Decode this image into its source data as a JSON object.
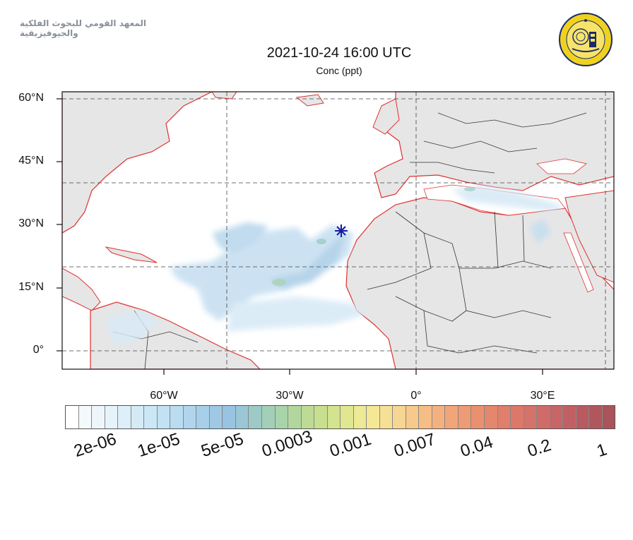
{
  "header": {
    "institute_name": "المعهد القومي للبحوث الفلكية والجيوفيزيقية",
    "title": "2021-10-24 16:00 UTC",
    "subtitle": "Conc (ppt)"
  },
  "map": {
    "region": "North Atlantic, North Africa, Mediterranean",
    "lat_labels": [
      "60°N",
      "45°N",
      "30°N",
      "15°N",
      "0°"
    ],
    "lon_labels": [
      "60°W",
      "30°W",
      "0°",
      "30°E"
    ],
    "source_marker": {
      "icon": "star-marker-icon",
      "color": "#1a1aa6"
    },
    "colors": {
      "land": "#e6e6e6",
      "ocean": "#ffffff",
      "coastline": "#e03030",
      "borders": "#333333",
      "grid": "#444444",
      "plume": "#b9d9ee"
    }
  },
  "colorbar": {
    "labels": [
      "2e-06",
      "1e-05",
      "5e-05",
      "0.0003",
      "0.001",
      "0.007",
      "0.04",
      "0.2",
      "1"
    ],
    "colors": [
      "#ffffff",
      "#f4f9fc",
      "#eef6fb",
      "#e6f3fa",
      "#ddeff8",
      "#d4ebf6",
      "#cbe7f5",
      "#c2e2f3",
      "#b9dcf0",
      "#b0d5ed",
      "#a7cfe9",
      "#9fc8e5",
      "#98c3e1",
      "#9ac6d5",
      "#9dcac6",
      "#a3cfb8",
      "#a9d3aa",
      "#b2d79e",
      "#bddb95",
      "#c8df90",
      "#d4e38f",
      "#e0e790",
      "#ecea94",
      "#f4e897",
      "#f6e096",
      "#f7d592",
      "#f7c98c",
      "#f6bd86",
      "#f4b17f",
      "#f1a579",
      "#ee9a74",
      "#ea9070",
      "#e5876d",
      "#e07f6b",
      "#db786a",
      "#d57269",
      "#cf6b68",
      "#c86567",
      "#c06064",
      "#b85b60",
      "#b0575d",
      "#a8545a"
    ]
  }
}
